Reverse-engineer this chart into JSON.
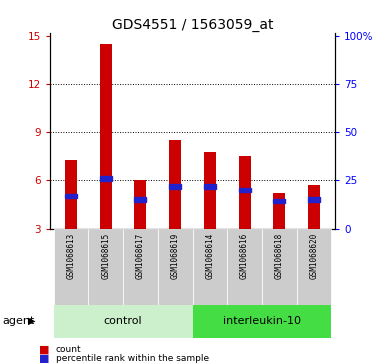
{
  "title": "GDS4551 / 1563059_at",
  "samples": [
    "GSM1068613",
    "GSM1068615",
    "GSM1068617",
    "GSM1068619",
    "GSM1068614",
    "GSM1068616",
    "GSM1068618",
    "GSM1068620"
  ],
  "counts": [
    7.3,
    14.5,
    6.0,
    8.5,
    7.8,
    7.5,
    5.2,
    5.7
  ],
  "percentile_ranks": [
    5.0,
    6.1,
    4.8,
    5.6,
    5.6,
    5.4,
    4.7,
    4.8
  ],
  "y_min": 3,
  "y_max": 15,
  "y_ticks": [
    3,
    6,
    9,
    12,
    15
  ],
  "right_tick_labels": [
    "0",
    "25",
    "50",
    "75",
    "100%"
  ],
  "bar_color": "#cc0000",
  "blue_color": "#2222cc",
  "bar_bottom": 3.0,
  "control_bg": "#ccf0cc",
  "interleukin_bg": "#44dd44",
  "sample_bg": "#cccccc",
  "group_label_control": "control",
  "group_label_il10": "interleukin-10",
  "agent_label": "agent",
  "legend_count": "count",
  "legend_percentile": "percentile rank within the sample",
  "title_fontsize": 10,
  "tick_fontsize": 7.5,
  "bar_width": 0.35
}
